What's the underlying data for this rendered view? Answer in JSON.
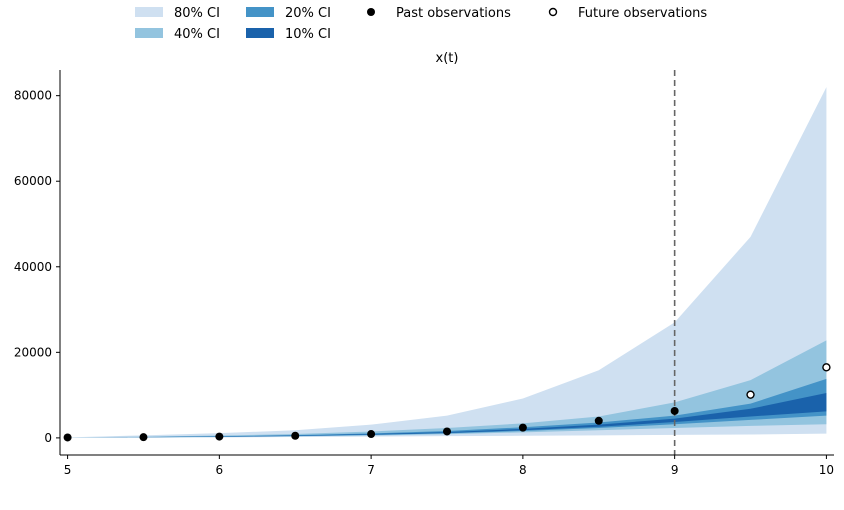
{
  "chart_data": {
    "type": "area",
    "title": "x(t)",
    "xlabel": "",
    "ylabel": "",
    "xlim": [
      4.95,
      10.05
    ],
    "ylim": [
      -4000,
      86000
    ],
    "x_ticks": [
      5,
      6,
      7,
      8,
      9,
      10
    ],
    "y_ticks": [
      0,
      20000,
      40000,
      60000,
      80000
    ],
    "y_tick_labels": [
      "0",
      "20000",
      "40000",
      "60000",
      "80000"
    ],
    "grid": false,
    "legend_position": "top-center",
    "forecast_start": 9,
    "x": [
      5,
      5.5,
      6,
      6.5,
      7,
      7.5,
      8,
      8.5,
      9,
      9.5,
      10
    ],
    "bands": [
      {
        "name": "80% CI",
        "color": "#cfe0f1",
        "lower": [
          100,
          80,
          100,
          200,
          300,
          400,
          500,
          600,
          700,
          800,
          1000
        ],
        "upper": [
          120,
          600,
          1100,
          1800,
          3100,
          5200,
          9200,
          15800,
          27000,
          47000,
          82000
        ]
      },
      {
        "name": "40% CI",
        "color": "#93c4df",
        "lower": [
          100,
          120,
          200,
          350,
          550,
          850,
          1300,
          1800,
          2300,
          2800,
          3200
        ],
        "upper": [
          110,
          300,
          550,
          900,
          1500,
          2300,
          3400,
          5000,
          8300,
          13500,
          22800
        ]
      },
      {
        "name": "20% CI",
        "color": "#4493c7",
        "lower": [
          100,
          140,
          250,
          420,
          680,
          1050,
          1600,
          2300,
          3200,
          4200,
          5200
        ],
        "upper": [
          105,
          210,
          380,
          650,
          1050,
          1600,
          2500,
          3600,
          5200,
          8000,
          13800
        ]
      },
      {
        "name": "10% CI",
        "color": "#1a62ab",
        "lower": [
          100,
          150,
          280,
          460,
          750,
          1150,
          1800,
          2600,
          3700,
          5000,
          6200
        ],
        "upper": [
          102,
          180,
          330,
          550,
          900,
          1350,
          2100,
          3100,
          4500,
          6800,
          10500
        ]
      }
    ],
    "past_observations": {
      "name": "Past observations",
      "x": [
        5,
        5.5,
        6,
        6.5,
        7,
        7.5,
        8,
        8.5,
        9
      ],
      "y": [
        100,
        170,
        300,
        500,
        900,
        1500,
        2400,
        4000,
        6300
      ]
    },
    "future_observations": {
      "name": "Future observations",
      "x": [
        9.5,
        10
      ],
      "y": [
        10100,
        16500
      ]
    }
  },
  "legend": {
    "ci80": "80% CI",
    "ci40": "40% CI",
    "ci20": "20% CI",
    "ci10": "10% CI",
    "past": "Past observations",
    "future": "Future observations"
  }
}
